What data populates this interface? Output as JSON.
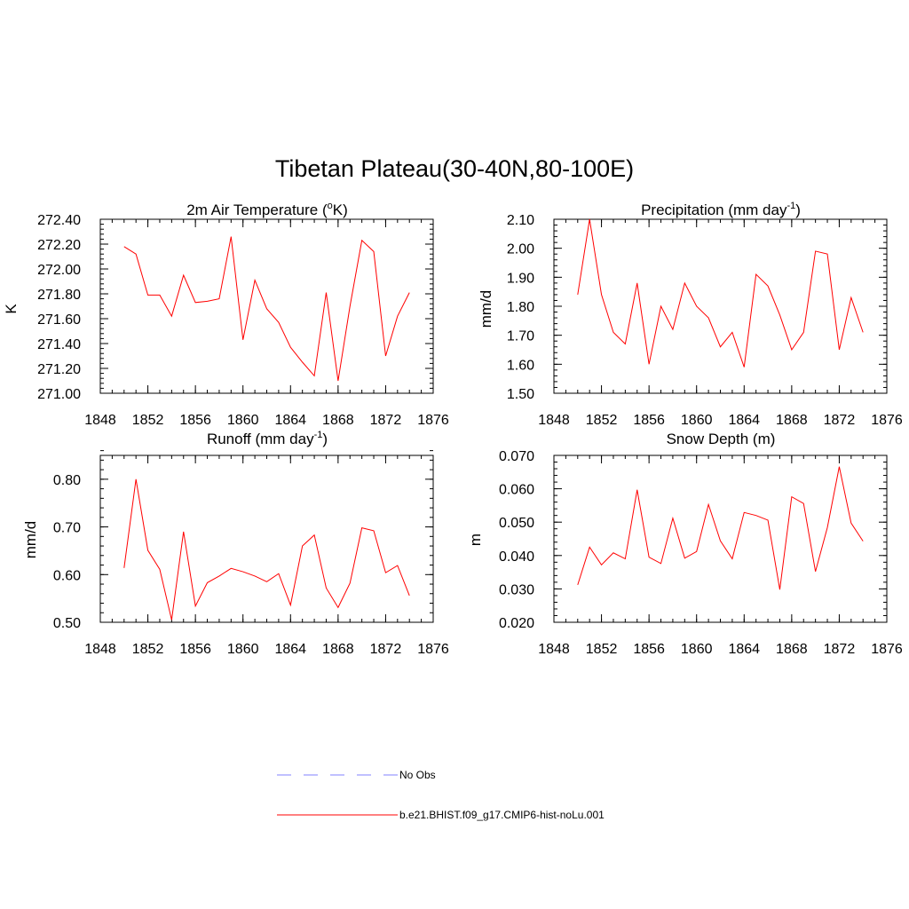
{
  "title": "Tibetan Plateau(30-40N,80-100E)",
  "legend": [
    {
      "label": "No Obs",
      "color": "#8080ff",
      "dashed": true
    },
    {
      "label": "b.e21.BHIST.f09_g17.CMIP6-hist-noLu.001",
      "color": "#ff0000",
      "dashed": false
    }
  ],
  "chart_data": [
    {
      "type": "line",
      "title": "2m Air Temperature (",
      "title_sup": "o",
      "title_post": "K)",
      "ylabel": "K",
      "xlim": [
        1848,
        1876
      ],
      "ylim": [
        271.0,
        272.4
      ],
      "xticks": [
        1848,
        1852,
        1856,
        1860,
        1864,
        1868,
        1872,
        1876
      ],
      "xtick_labels": [
        "1848",
        "1852",
        "1856",
        "1860",
        "1864",
        "1868",
        "1872",
        "1876"
      ],
      "yticks": [
        271.0,
        271.2,
        271.4,
        271.6,
        271.8,
        272.0,
        272.2,
        272.4
      ],
      "ytick_labels": [
        "271.00",
        "271.20",
        "271.40",
        "271.60",
        "271.80",
        "272.00",
        "272.20",
        "272.40"
      ],
      "series": [
        {
          "color": "#ff0000",
          "x": [
            1850,
            1851,
            1852,
            1853,
            1854,
            1855,
            1856,
            1857,
            1858,
            1859,
            1860,
            1861,
            1862,
            1863,
            1864,
            1865,
            1866,
            1867,
            1868,
            1869,
            1870,
            1871,
            1872,
            1873,
            1874
          ],
          "y": [
            272.18,
            272.12,
            271.79,
            271.79,
            271.62,
            271.95,
            271.73,
            271.74,
            271.76,
            272.26,
            271.43,
            271.91,
            271.68,
            271.57,
            271.37,
            271.25,
            271.14,
            271.81,
            271.1,
            271.7,
            272.23,
            272.14,
            271.3,
            271.62,
            271.81
          ]
        }
      ]
    },
    {
      "type": "line",
      "title": "Precipitation (mm day",
      "title_sup": "-1",
      "title_post": ")",
      "ylabel": "mm/d",
      "xlim": [
        1848,
        1876
      ],
      "ylim": [
        1.5,
        2.1
      ],
      "xticks": [
        1848,
        1852,
        1856,
        1860,
        1864,
        1868,
        1872,
        1876
      ],
      "xtick_labels": [
        "1848",
        "1852",
        "1856",
        "1860",
        "1864",
        "1868",
        "1872",
        "1876"
      ],
      "yticks": [
        1.5,
        1.6,
        1.7,
        1.8,
        1.9,
        2.0,
        2.1
      ],
      "ytick_labels": [
        "1.50",
        "1.60",
        "1.70",
        "1.80",
        "1.90",
        "2.00",
        "2.10"
      ],
      "series": [
        {
          "color": "#ff0000",
          "x": [
            1850,
            1851,
            1852,
            1853,
            1854,
            1855,
            1856,
            1857,
            1858,
            1859,
            1860,
            1861,
            1862,
            1863,
            1864,
            1865,
            1866,
            1867,
            1868,
            1869,
            1870,
            1871,
            1872,
            1873,
            1874
          ],
          "y": [
            1.84,
            2.1,
            1.84,
            1.71,
            1.67,
            1.88,
            1.6,
            1.8,
            1.72,
            1.88,
            1.8,
            1.76,
            1.66,
            1.71,
            1.59,
            1.91,
            1.87,
            1.77,
            1.65,
            1.71,
            1.99,
            1.98,
            1.65,
            1.83,
            1.71
          ]
        }
      ]
    },
    {
      "type": "line",
      "title": "Runoff (mm day",
      "title_sup": "-1",
      "title_post": ")",
      "ylabel": "mm/d",
      "xlim": [
        1848,
        1876
      ],
      "ylim": [
        0.5,
        0.85
      ],
      "xticks": [
        1848,
        1852,
        1856,
        1860,
        1864,
        1868,
        1872,
        1876
      ],
      "xtick_labels": [
        "1848",
        "1852",
        "1856",
        "1860",
        "1864",
        "1868",
        "1872",
        "1876"
      ],
      "yticks": [
        0.5,
        0.6,
        0.7,
        0.8
      ],
      "ytick_labels": [
        "0.50",
        "0.60",
        "0.70",
        "0.80"
      ],
      "series": [
        {
          "color": "#ff0000",
          "x": [
            1850,
            1851,
            1852,
            1853,
            1854,
            1855,
            1856,
            1857,
            1858,
            1859,
            1860,
            1861,
            1862,
            1863,
            1864,
            1865,
            1866,
            1867,
            1868,
            1869,
            1870,
            1871,
            1872,
            1873,
            1874
          ],
          "y": [
            0.614,
            0.8,
            0.651,
            0.611,
            0.505,
            0.69,
            0.534,
            0.583,
            0.597,
            0.613,
            0.606,
            0.597,
            0.585,
            0.602,
            0.536,
            0.66,
            0.683,
            0.572,
            0.531,
            0.582,
            0.698,
            0.692,
            0.604,
            0.619,
            0.556
          ]
        }
      ]
    },
    {
      "type": "line",
      "title": "Snow Depth (m)",
      "title_sup": "",
      "title_post": "",
      "ylabel": "m",
      "xlim": [
        1848,
        1876
      ],
      "ylim": [
        0.02,
        0.07
      ],
      "xticks": [
        1848,
        1852,
        1856,
        1860,
        1864,
        1868,
        1872,
        1876
      ],
      "xtick_labels": [
        "1848",
        "1852",
        "1856",
        "1860",
        "1864",
        "1868",
        "1872",
        "1876"
      ],
      "yticks": [
        0.02,
        0.03,
        0.04,
        0.05,
        0.06,
        0.07
      ],
      "ytick_labels": [
        "0.020",
        "0.030",
        "0.040",
        "0.050",
        "0.060",
        "0.070"
      ],
      "series": [
        {
          "color": "#ff0000",
          "x": [
            1850,
            1851,
            1852,
            1853,
            1854,
            1855,
            1856,
            1857,
            1858,
            1859,
            1860,
            1861,
            1862,
            1863,
            1864,
            1865,
            1866,
            1867,
            1868,
            1869,
            1870,
            1871,
            1872,
            1873,
            1874
          ],
          "y": [
            0.0312,
            0.0425,
            0.0372,
            0.0408,
            0.039,
            0.0597,
            0.0395,
            0.0376,
            0.0512,
            0.0392,
            0.0412,
            0.0553,
            0.0444,
            0.039,
            0.0529,
            0.052,
            0.0506,
            0.0298,
            0.0576,
            0.0556,
            0.0352,
            0.0484,
            0.0666,
            0.0497,
            0.0443
          ]
        }
      ]
    }
  ]
}
